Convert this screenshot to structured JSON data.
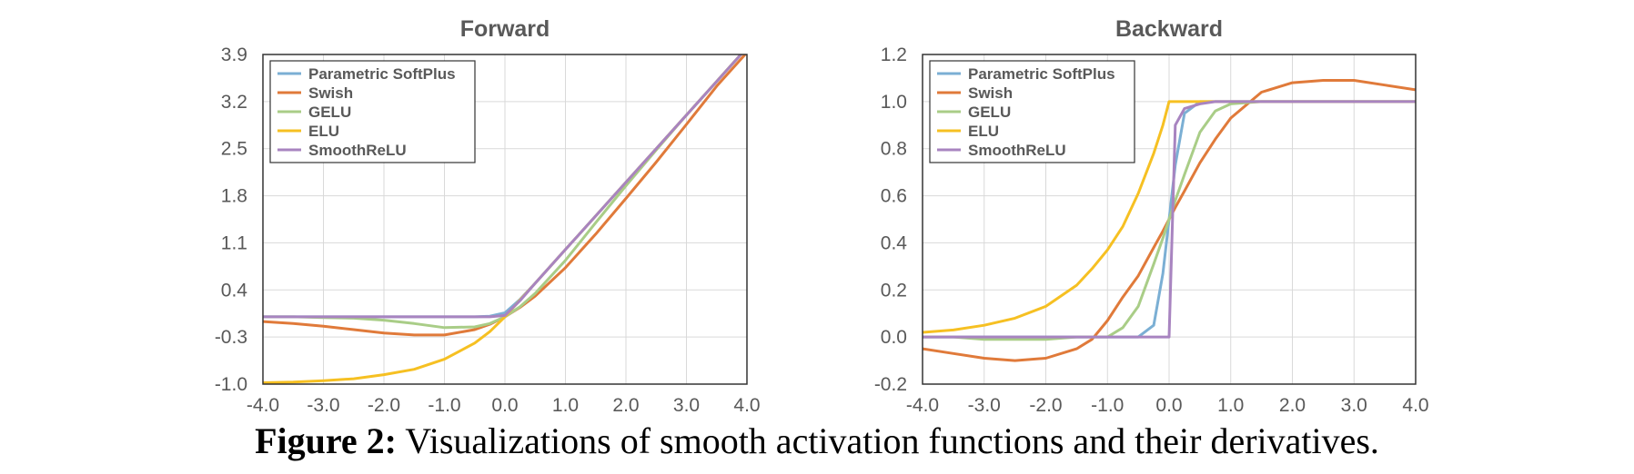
{
  "colors": {
    "Parametric SoftPlus": "#7bafd4",
    "Swish": "#e07a3a",
    "GELU": "#a9cd87",
    "ELU": "#f6c022",
    "SmoothReLU": "#a884c0"
  },
  "caption": {
    "label": "Figure 2:",
    "text": "Visualizations of smooth activation functions and their derivatives."
  },
  "chart_data": [
    {
      "type": "line",
      "title": "Forward",
      "xlabel": "",
      "ylabel": "",
      "xlim": [
        -4.0,
        4.0
      ],
      "ylim": [
        -1.0,
        3.9
      ],
      "xticks": [
        -4.0,
        -3.0,
        -2.0,
        -1.0,
        0.0,
        1.0,
        2.0,
        3.0,
        4.0
      ],
      "xtick_labels": [
        "-4.0",
        "-3.0",
        "-2.0",
        "-1.0",
        "0.0",
        "1.0",
        "2.0",
        "3.0",
        "4.0"
      ],
      "yticks": [
        -1.0,
        -0.3,
        0.4,
        1.1,
        1.8,
        2.5,
        3.2,
        3.9
      ],
      "ytick_labels": [
        "-1.0",
        "-0.3",
        "0.4",
        "1.1",
        "1.8",
        "2.5",
        "3.2",
        "3.9"
      ],
      "grid": true,
      "legend_position": "top-left",
      "x": [
        -4.0,
        -3.5,
        -3.0,
        -2.5,
        -2.0,
        -1.5,
        -1.0,
        -0.5,
        -0.25,
        0.0,
        0.25,
        0.5,
        1.0,
        1.5,
        2.0,
        2.5,
        3.0,
        3.5,
        4.0
      ],
      "series": [
        {
          "name": "Parametric SoftPlus",
          "values": [
            0.0,
            0.0,
            0.0,
            0.0,
            0.0,
            0.0,
            0.0,
            0.0,
            0.01,
            0.06,
            0.26,
            0.5,
            1.0,
            1.5,
            2.0,
            2.5,
            3.0,
            3.5,
            4.0
          ]
        },
        {
          "name": "Swish",
          "values": [
            -0.07,
            -0.1,
            -0.14,
            -0.19,
            -0.24,
            -0.27,
            -0.27,
            -0.19,
            -0.11,
            0.0,
            0.14,
            0.31,
            0.73,
            1.23,
            1.76,
            2.3,
            2.86,
            3.43,
            3.93
          ]
        },
        {
          "name": "GELU",
          "values": [
            0.0,
            0.0,
            -0.01,
            -0.02,
            -0.05,
            -0.1,
            -0.16,
            -0.15,
            -0.1,
            0.0,
            0.15,
            0.35,
            0.84,
            1.4,
            1.95,
            2.48,
            3.0,
            3.5,
            4.0
          ]
        },
        {
          "name": "ELU",
          "values": [
            -0.98,
            -0.97,
            -0.95,
            -0.92,
            -0.86,
            -0.78,
            -0.63,
            -0.39,
            -0.22,
            0.0,
            0.25,
            0.5,
            1.0,
            1.5,
            2.0,
            2.5,
            3.0,
            3.5,
            4.0
          ]
        },
        {
          "name": "SmoothReLU",
          "values": [
            0.0,
            0.0,
            0.0,
            0.0,
            0.0,
            0.0,
            0.0,
            0.0,
            0.0,
            0.02,
            0.24,
            0.5,
            1.0,
            1.5,
            2.0,
            2.5,
            3.0,
            3.5,
            4.0
          ]
        }
      ]
    },
    {
      "type": "line",
      "title": "Backward",
      "xlabel": "",
      "ylabel": "",
      "xlim": [
        -4.0,
        4.0
      ],
      "ylim": [
        -0.2,
        1.2
      ],
      "xticks": [
        -4.0,
        -3.0,
        -2.0,
        -1.0,
        0.0,
        1.0,
        2.0,
        3.0,
        4.0
      ],
      "xtick_labels": [
        "-4.0",
        "-3.0",
        "-2.0",
        "-1.0",
        "0.0",
        "1.0",
        "2.0",
        "3.0",
        "4.0"
      ],
      "yticks": [
        -0.2,
        0.0,
        0.2,
        0.4,
        0.6,
        0.8,
        1.0,
        1.2
      ],
      "ytick_labels": [
        "-0.2",
        "0.0",
        "0.2",
        "0.4",
        "0.6",
        "0.8",
        "1.0",
        "1.2"
      ],
      "grid": true,
      "legend_position": "top-left",
      "x": [
        -4.0,
        -3.5,
        -3.0,
        -2.5,
        -2.0,
        -1.5,
        -1.25,
        -1.0,
        -0.75,
        -0.5,
        -0.25,
        -0.1,
        0.0,
        0.1,
        0.25,
        0.5,
        0.75,
        1.0,
        1.5,
        2.0,
        2.5,
        3.0,
        3.5,
        4.0
      ],
      "series": [
        {
          "name": "Parametric SoftPlus",
          "values": [
            0.0,
            0.0,
            0.0,
            0.0,
            0.0,
            0.0,
            0.0,
            0.0,
            0.0,
            0.0,
            0.05,
            0.27,
            0.5,
            0.73,
            0.95,
            1.0,
            1.0,
            1.0,
            1.0,
            1.0,
            1.0,
            1.0,
            1.0,
            1.0
          ]
        },
        {
          "name": "Swish",
          "values": [
            -0.05,
            -0.07,
            -0.09,
            -0.1,
            -0.09,
            -0.05,
            -0.01,
            0.07,
            0.17,
            0.26,
            0.38,
            0.45,
            0.5,
            0.55,
            0.62,
            0.74,
            0.84,
            0.93,
            1.04,
            1.08,
            1.09,
            1.09,
            1.07,
            1.05
          ]
        },
        {
          "name": "GELU",
          "values": [
            0.0,
            0.0,
            -0.01,
            -0.01,
            -0.01,
            0.0,
            0.0,
            0.0,
            0.04,
            0.13,
            0.31,
            0.42,
            0.5,
            0.58,
            0.69,
            0.87,
            0.96,
            0.99,
            1.0,
            1.0,
            1.0,
            1.0,
            1.0,
            1.0
          ]
        },
        {
          "name": "ELU",
          "values": [
            0.02,
            0.03,
            0.05,
            0.08,
            0.13,
            0.22,
            0.29,
            0.37,
            0.47,
            0.61,
            0.78,
            0.9,
            1.0,
            1.0,
            1.0,
            1.0,
            1.0,
            1.0,
            1.0,
            1.0,
            1.0,
            1.0,
            1.0,
            1.0
          ]
        },
        {
          "name": "SmoothReLU",
          "values": [
            0.0,
            0.0,
            0.0,
            0.0,
            0.0,
            0.0,
            0.0,
            0.0,
            0.0,
            0.0,
            0.0,
            0.0,
            0.0,
            0.9,
            0.97,
            0.99,
            1.0,
            1.0,
            1.0,
            1.0,
            1.0,
            1.0,
            1.0,
            1.0
          ]
        }
      ]
    }
  ]
}
